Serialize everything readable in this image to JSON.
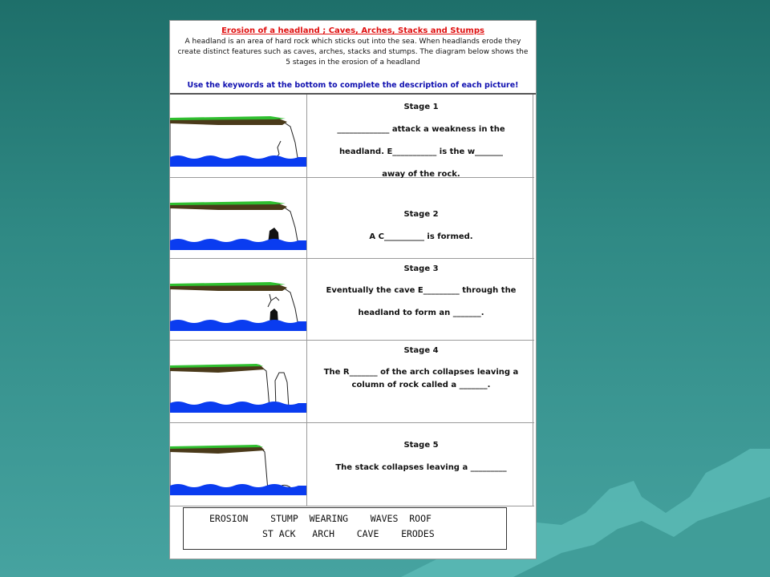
{
  "slide": {
    "colors": {
      "background": "#2f8984",
      "mountains": "#4fb3ae"
    }
  },
  "worksheet": {
    "title": "Erosion of a headland ; Caves, Arches, Stacks and Stumps",
    "intro_lines": [
      "A headland is an area of hard rock which sticks out into the sea. When headlands erode they",
      "create distinct features such as caves, arches, stacks and stumps. The diagram below shows the",
      "5 stages in the  erosion of a headland"
    ],
    "instruction": "Use the keywords at the bottom to complete the description of each picture!",
    "colors": {
      "title": "#e01010",
      "instruction": "#1010b0",
      "sea": "#0a3cf0",
      "grass": "#2fbf2f",
      "soil": "#4a3a1a"
    },
    "stages": [
      {
        "label": "Stage 1",
        "lines": [
          "_____________ attack a weakness in the",
          "headland. E___________ is the w_______",
          "away of the rock."
        ]
      },
      {
        "label": "Stage 2",
        "lines": [
          "A C__________ is formed."
        ]
      },
      {
        "label": "Stage 3",
        "lines": [
          "Eventually the cave E_________ through the",
          "headland to form an _______."
        ]
      },
      {
        "label": "Stage 4",
        "lines": [
          "The R_______ of the arch collapses leaving a",
          "column of rock called a _______."
        ]
      },
      {
        "label": "Stage 5",
        "lines": [
          "The stack collapses leaving a _________"
        ]
      }
    ],
    "keywords": {
      "line1": "EROSION    STUMP  WEARING    WAVES  ROOF",
      "line2": "ST ACK   ARCH    CAVE    ERODES"
    }
  }
}
